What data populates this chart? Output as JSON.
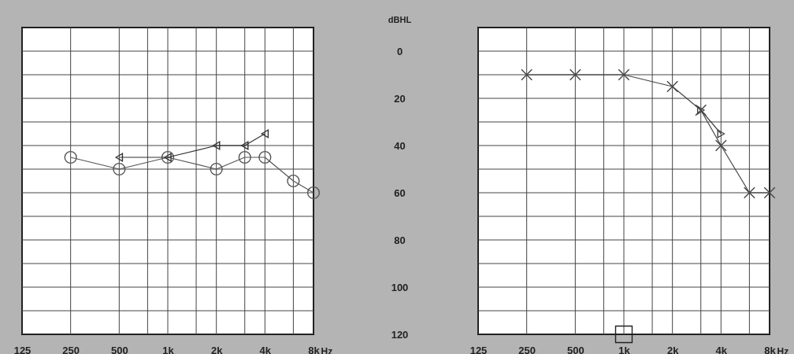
{
  "chart_data": [
    {
      "type": "line",
      "xlabel": "Hz",
      "ylabel": "dBHL",
      "log": "x",
      "grid": true,
      "xlim": [
        125,
        8000
      ],
      "ylim": [
        120,
        -10
      ],
      "xticks": [
        125,
        250,
        500,
        {
          "value": 750,
          "label": null
        },
        {
          "value": 1000,
          "label": "1k"
        },
        {
          "value": 1500,
          "label": null
        },
        {
          "value": 2000,
          "label": "2k"
        },
        {
          "value": 3000,
          "label": null
        },
        {
          "value": 4000,
          "label": "4k"
        },
        {
          "value": 6000,
          "label": null
        },
        {
          "value": 8000,
          "label": "8k"
        }
      ],
      "yticks": [
        {
          "value": -10,
          "label": null
        },
        0,
        {
          "value": 10,
          "label": null
        },
        20,
        {
          "value": 30,
          "label": null
        },
        40,
        {
          "value": 50,
          "label": null
        },
        60,
        {
          "value": 70,
          "label": null
        },
        80,
        {
          "value": 90,
          "label": null
        },
        100,
        {
          "value": 110,
          "label": null
        },
        120
      ],
      "series": [
        {
          "type": "line",
          "marker": "circle",
          "color": "#555555",
          "x": [
            250,
            500,
            1000,
            2000,
            3000,
            4000,
            6000,
            8000
          ],
          "values": [
            45,
            50,
            45,
            50,
            45,
            45,
            55,
            60
          ]
        },
        {
          "type": "line",
          "marker": "triangle",
          "color": "#333333",
          "x": [
            500,
            1000,
            2000,
            3000,
            4000
          ],
          "values": [
            45,
            45,
            40,
            40,
            35
          ]
        }
      ]
    },
    {
      "type": "line",
      "xlabel": "Hz",
      "log": "x",
      "grid": true,
      "tick_labels": "x",
      "xlim": [
        125,
        8000
      ],
      "ylim": [
        120,
        -10
      ],
      "xticks": [
        125,
        250,
        500,
        {
          "value": 750,
          "label": null
        },
        {
          "value": 1000,
          "label": "1k"
        },
        {
          "value": 1500,
          "label": null
        },
        {
          "value": 2000,
          "label": "2k"
        },
        {
          "value": 3000,
          "label": null
        },
        {
          "value": 4000,
          "label": "4k"
        },
        {
          "value": 6000,
          "label": null
        },
        {
          "value": 8000,
          "label": "8k"
        }
      ],
      "yticks": [
        {
          "value": -10,
          "label": null
        },
        0,
        {
          "value": 10,
          "label": null
        },
        20,
        {
          "value": 30,
          "label": null
        },
        40,
        {
          "value": 50,
          "label": null
        },
        60,
        {
          "value": 70,
          "label": null
        },
        80,
        {
          "value": 90,
          "label": null
        },
        100,
        {
          "value": 110,
          "label": null
        },
        120
      ],
      "series": [
        {
          "type": "line",
          "marker": "cross",
          "color": "#444444",
          "x": [
            250,
            500,
            1000,
            2000,
            3000,
            4000,
            6000,
            8000
          ],
          "values": [
            10,
            10,
            10,
            15,
            25,
            40,
            60,
            60
          ]
        },
        {
          "type": "line",
          "marker": "triangle",
          "color": "#444444",
          "x": [
            3000,
            4000
          ],
          "values": [
            25,
            35
          ]
        },
        {
          "type": "scatter",
          "marker": "square",
          "color": "#222222",
          "x": [
            1000
          ],
          "values": [
            120
          ]
        }
      ]
    }
  ]
}
